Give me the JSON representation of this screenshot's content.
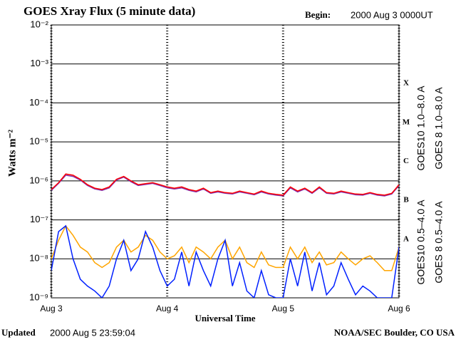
{
  "chart_data": {
    "type": "line",
    "title": "GOES Xray Flux (5 minute data)",
    "begin_label": "Begin:",
    "begin_time": "2000 Aug 3 0000UT",
    "xlabel": "Universal Time",
    "ylabel": "Watts m⁻²",
    "updated_label": "Updated",
    "updated_time": "2000 Aug  5 23:59:04",
    "credit": "NOAA/SEC Boulder, CO USA",
    "log_y": true,
    "grid": true,
    "flare_classes": [
      "X",
      "M",
      "C",
      "B",
      "A"
    ],
    "xlim": [
      0,
      72
    ],
    "xticks": [
      {
        "value": 0,
        "label": "Aug 3"
      },
      {
        "value": 24,
        "label": "Aug 4"
      },
      {
        "value": 48,
        "label": "Aug 5"
      },
      {
        "value": 72,
        "label": "Aug 6"
      }
    ],
    "ylim": [
      1e-09,
      0.01
    ],
    "yticks": [
      {
        "value": 0.01,
        "label": "10⁻²"
      },
      {
        "value": 0.001,
        "label": "10⁻³"
      },
      {
        "value": 0.0001,
        "label": "10⁻⁴"
      },
      {
        "value": 1e-05,
        "label": "10⁻⁵"
      },
      {
        "value": 1e-06,
        "label": "10⁻⁶"
      },
      {
        "value": 1e-07,
        "label": "10⁻⁷"
      },
      {
        "value": 1e-08,
        "label": "10⁻⁸"
      },
      {
        "value": 1e-09,
        "label": "10⁻⁹"
      }
    ],
    "x": [
      0,
      1.5,
      3,
      4.5,
      6,
      7.5,
      9,
      10.5,
      12,
      13.5,
      15,
      16.5,
      18,
      19.5,
      21,
      22.5,
      24,
      25.5,
      27,
      28.5,
      30,
      31.5,
      33,
      34.5,
      36,
      37.5,
      39,
      40.5,
      42,
      43.5,
      45,
      46.5,
      48,
      49.5,
      51,
      52.5,
      54,
      55.5,
      57,
      58.5,
      60,
      61.5,
      63,
      64.5,
      66,
      67.5,
      69,
      70.5,
      72
    ],
    "series": [
      {
        "name": "GOES10 1.0–8.0 A",
        "color": "#8030b0",
        "values": [
          5.7e-07,
          8.6e-07,
          1.4e-06,
          1.3e-06,
          1.05e-06,
          7.6e-07,
          6.2e-07,
          5.7e-07,
          6.6e-07,
          1.05e-06,
          1.25e-06,
          9.5e-07,
          7.6e-07,
          8.1e-07,
          8.6e-07,
          7.6e-07,
          6.6e-07,
          6.2e-07,
          6.6e-07,
          5.7e-07,
          5.2e-07,
          6.2e-07,
          4.8e-07,
          5.2e-07,
          4.8e-07,
          4.6e-07,
          5.2e-07,
          4.8e-07,
          4.4e-07,
          5.2e-07,
          4.6e-07,
          4.3e-07,
          4.1e-07,
          6.6e-07,
          5.2e-07,
          6.2e-07,
          4.8e-07,
          6.6e-07,
          4.8e-07,
          4.6e-07,
          5.2e-07,
          4.8e-07,
          4.4e-07,
          4.3e-07,
          4.8e-07,
          4.3e-07,
          4.1e-07,
          4.6e-07,
          7.6e-07
        ]
      },
      {
        "name": "GOES 8 1.0–8.0 A",
        "color": "#ff0000",
        "values": [
          6e-07,
          9e-07,
          1.5e-06,
          1.4e-06,
          1.1e-06,
          8e-07,
          6.5e-07,
          6e-07,
          7e-07,
          1.1e-06,
          1.3e-06,
          1e-06,
          8e-07,
          8.5e-07,
          9e-07,
          8e-07,
          7e-07,
          6.5e-07,
          7e-07,
          6e-07,
          5.5e-07,
          6.5e-07,
          5e-07,
          5.5e-07,
          5e-07,
          4.8e-07,
          5.5e-07,
          5e-07,
          4.6e-07,
          5.5e-07,
          4.8e-07,
          4.5e-07,
          4.3e-07,
          7e-07,
          5.5e-07,
          6.5e-07,
          5e-07,
          7e-07,
          5e-07,
          4.8e-07,
          5.5e-07,
          5e-07,
          4.6e-07,
          4.5e-07,
          5e-07,
          4.5e-07,
          4.3e-07,
          4.8e-07,
          8e-07
        ]
      },
      {
        "name": "GOES10 0.5–4.0 A",
        "color": "#ffa500",
        "values": [
          1e-08,
          3e-08,
          7e-08,
          4e-08,
          2e-08,
          1.5e-08,
          8e-09,
          6e-09,
          8e-09,
          2e-08,
          3e-08,
          1.5e-08,
          2e-08,
          4e-08,
          3e-08,
          1.5e-08,
          1e-08,
          1.2e-08,
          2e-08,
          8e-09,
          2e-08,
          1.5e-08,
          1e-08,
          2e-08,
          3e-08,
          1e-08,
          2e-08,
          8e-09,
          6e-09,
          1.5e-08,
          7e-09,
          6e-09,
          6e-09,
          2e-08,
          1e-08,
          2e-08,
          8e-09,
          1.5e-08,
          7e-09,
          8e-09,
          1.5e-08,
          1e-08,
          7e-09,
          1e-08,
          1.2e-08,
          8e-09,
          5e-09,
          5e-09,
          2e-08
        ]
      },
      {
        "name": "GOES 8 0.5–4.0 A",
        "color": "#0020ff",
        "values": [
          5e-09,
          5e-08,
          7e-08,
          1e-08,
          3e-09,
          2e-09,
          1.5e-09,
          1e-09,
          2e-09,
          1e-08,
          3e-08,
          5e-09,
          1e-08,
          5e-08,
          2e-08,
          5e-09,
          2e-09,
          3e-09,
          1.5e-08,
          2e-09,
          1.5e-08,
          5e-09,
          2e-09,
          1e-08,
          3e-08,
          2e-09,
          8e-09,
          1.5e-09,
          1e-09,
          5e-09,
          1.2e-09,
          1e-09,
          1e-09,
          1e-08,
          2e-09,
          1.5e-08,
          1.5e-09,
          8e-09,
          1.2e-09,
          2e-09,
          8e-09,
          3e-09,
          1.2e-09,
          2e-09,
          1.5e-09,
          1e-09,
          1e-09,
          1e-09,
          2e-08
        ]
      }
    ]
  }
}
